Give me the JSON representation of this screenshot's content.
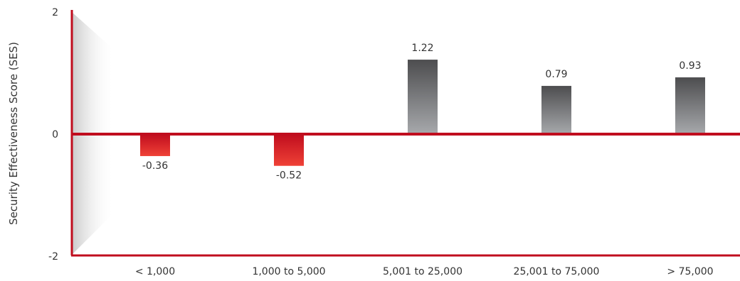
{
  "chart_data": {
    "type": "bar",
    "title": "",
    "xlabel": "",
    "ylabel": "Security Effectiveness Score (SES)",
    "categories": [
      "< 1,000",
      "1,000 to 5,000",
      "5,001 to 25,000",
      "25,001 to 75,000",
      "> 75,000"
    ],
    "values": [
      -0.36,
      -0.52,
      1.22,
      0.79,
      0.93
    ],
    "value_labels": [
      "-0.36",
      "-0.52",
      "1.22",
      "0.79",
      "0.93"
    ],
    "ylim": [
      -2,
      2
    ],
    "yticks": [
      -2,
      0,
      2
    ],
    "ytick_labels": [
      "-2",
      "0",
      "2"
    ],
    "grid": false,
    "legend": "none",
    "colors": {
      "axis": "#c00d1e",
      "positive_bar_top": "#4d4d4f",
      "positive_bar_bottom": "#a7a9ac",
      "negative_bar_top": "#c00d1e",
      "negative_bar_bottom": "#ef4136",
      "text": "#333333"
    }
  }
}
